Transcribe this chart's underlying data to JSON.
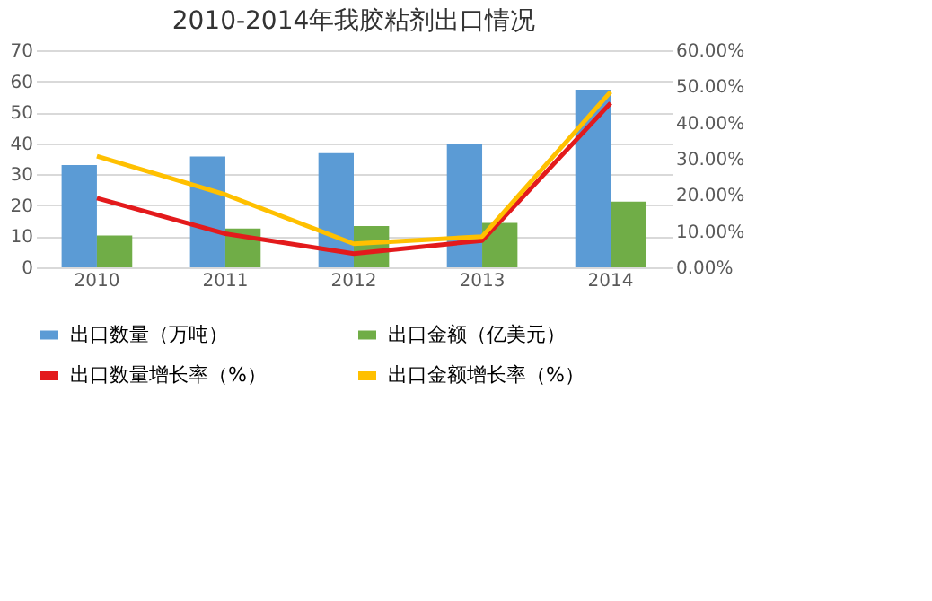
{
  "chart_data": {
    "type": "bar",
    "title": "2010-2014年我胶粘剂出口情况",
    "categories": [
      "2010",
      "2011",
      "2012",
      "2013",
      "2014"
    ],
    "series": [
      {
        "name": "出口数量（万吨）",
        "color": "#5b9bd5",
        "values": [
          33,
          35.7,
          36.8,
          39.8,
          57.3
        ]
      },
      {
        "name": "出口金额（亿美元）",
        "color": "#70ad47",
        "values": [
          10.3,
          12.5,
          13.3,
          14.3,
          21.2
        ]
      },
      {
        "name": "出口数量增长率（%）",
        "color": "#e31a1c",
        "type": "line",
        "axis": "y2",
        "values": [
          19.1,
          9.3,
          3.8,
          7.4,
          45.4
        ]
      },
      {
        "name": "出口金额增长率（%）",
        "color": "#ffc000",
        "type": "line",
        "axis": "y2",
        "values": [
          30.7,
          20.1,
          6.5,
          8.5,
          48.5
        ]
      }
    ],
    "ylim": [
      0,
      70
    ],
    "yticks": [
      0,
      10,
      20,
      30,
      40,
      50,
      60,
      70
    ],
    "y2lim": [
      0,
      60
    ],
    "y2ticks": [
      {
        "value": 0,
        "label": "0.00%"
      },
      {
        "value": 10,
        "label": "10.00%"
      },
      {
        "value": 20,
        "label": "20.00%"
      },
      {
        "value": 30,
        "label": "30.00%"
      },
      {
        "value": 40,
        "label": "40.00%"
      },
      {
        "value": 50,
        "label": "50.00%"
      },
      {
        "value": 60,
        "label": "60.00%"
      }
    ],
    "grid": "y",
    "legend": "bottom",
    "marker": "none",
    "line_style": "solid"
  }
}
